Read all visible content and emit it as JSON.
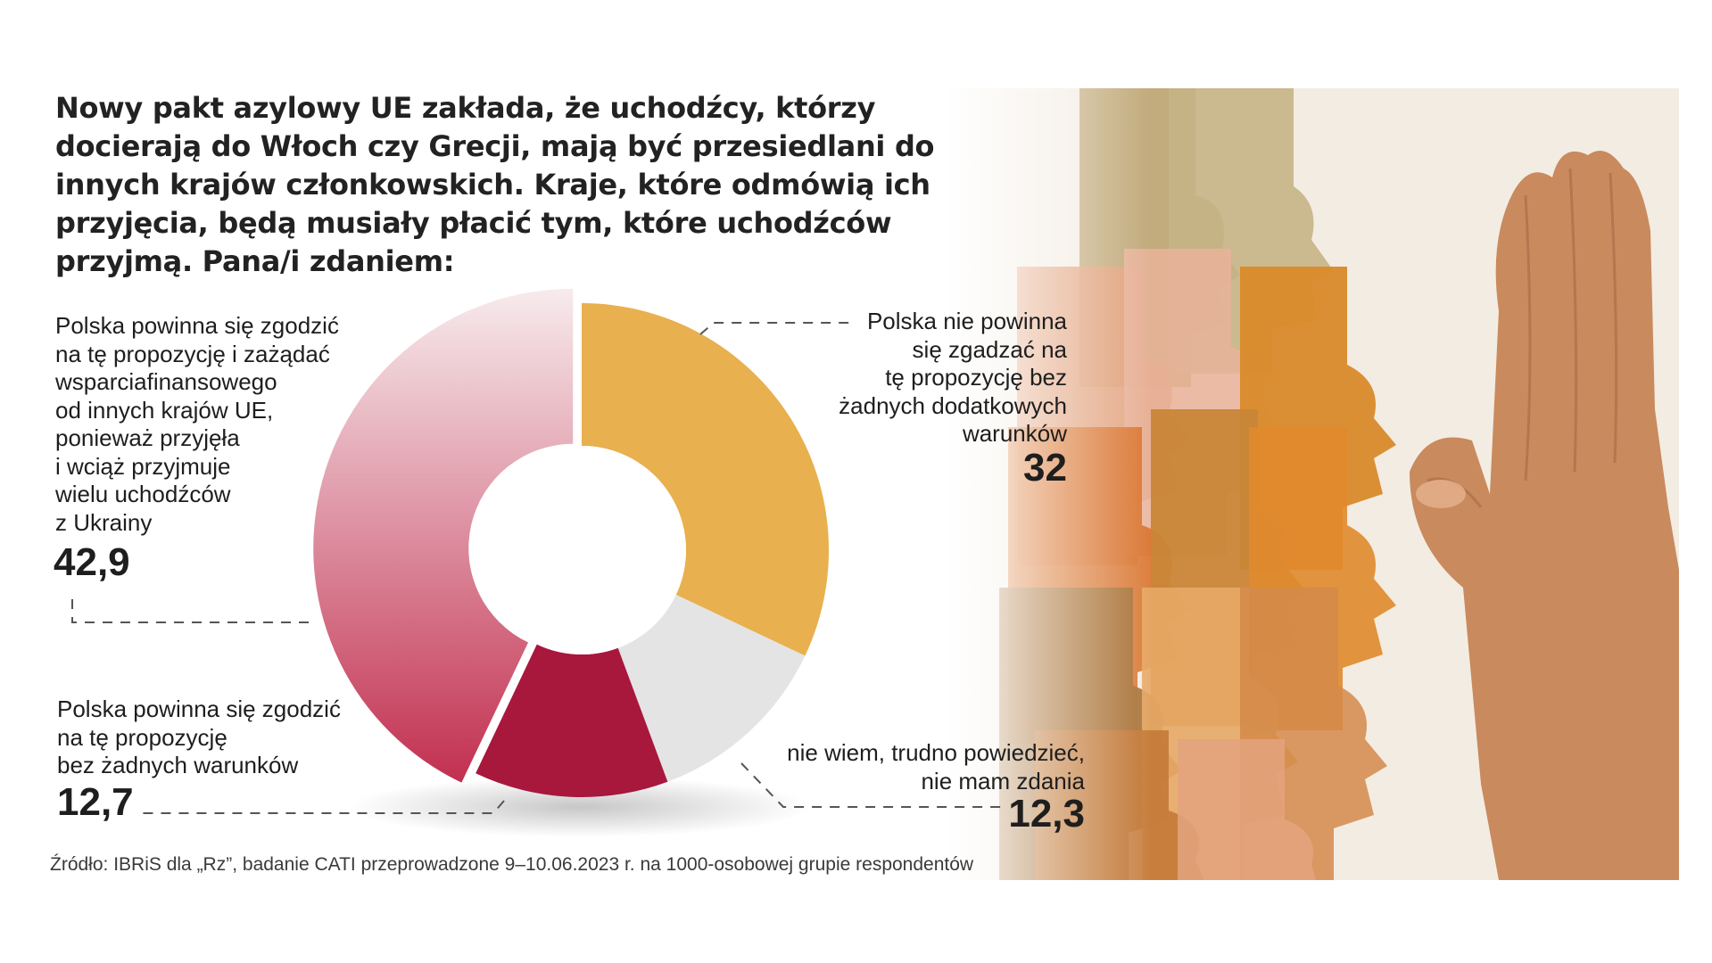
{
  "title": "Nowy pakt azylowy UE zakłada, że uchodźcy, którzy docierają do Włoch czy Grecji, mają być przesiedlani do innych krajów członkowskich. Kraje, które odmówią ich przyjęcia, będą musiały płacić tym, które uchodźców przyjmą. Pana/i zdaniem:",
  "source": "Źródło: IBRiS dla „Rz”, badanie CATI przeprowadzone 9–10.06.2023 r. na 1000-osobowej grupie respondentów",
  "labels": {
    "s0": "Polska nie powinna\nsię zgadzać na\ntę propozycję bez\nżadnych dodatkowych\nwarunków",
    "s1": "nie wiem, trudno powiedzieć,\nnie mam zdania",
    "s2": "Polska powinna się zgodzić\nna tę propozycję\nbez żadnych warunków",
    "s3": "Polska powinna się zgodzić\nna tę propozycję i zażądać\nwsparciafinansowego\nod innych krajów UE,\nponieważ przyjęła\ni wciąż przyjmuje\nwielu uchodźców\nz Ukrainy"
  },
  "values_text": {
    "s0": "32",
    "s1": "12,3",
    "s2": "12,7",
    "s3": "42,9"
  },
  "colors": {
    "s0": "#e8b04e",
    "s1": "#e4e4e4",
    "s2": "#a8173c",
    "s3_top": "#f7ebed",
    "s3_bottom": "#c23050",
    "photo_bg": "#f4ede3",
    "hand": "#c98a5e"
  },
  "chart_data": {
    "type": "pie",
    "style": "donut",
    "title": "",
    "categories": [
      "Polska nie powinna się zgadzać na tę propozycję bez żadnych dodatkowych warunków",
      "nie wiem, trudno powiedzieć, nie mam zdania",
      "Polska powinna się zgodzić na tę propozycję bez żadnych warunków",
      "Polska powinna się zgodzić na tę propozycję i zażądać wsparciafinansowego od innych krajów UE, ponieważ przyjęła i wciąż przyjmuje wielu uchodźców z Ukrainy"
    ],
    "values": [
      32,
      12.3,
      12.7,
      42.9
    ],
    "value_labels": [
      "32",
      "12,3",
      "12,7",
      "42,9"
    ],
    "unit": "%",
    "exploded_slice": 3
  }
}
